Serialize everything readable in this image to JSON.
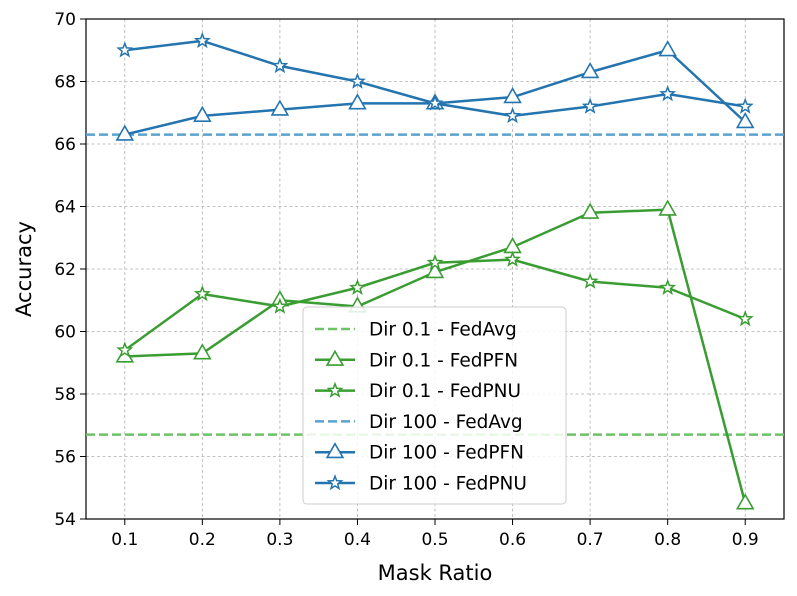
{
  "chart_data": {
    "type": "line",
    "title": "",
    "xlabel": "Mask Ratio",
    "ylabel": "Accuracy",
    "x": [
      0.1,
      0.2,
      0.3,
      0.4,
      0.5,
      0.6,
      0.7,
      0.8,
      0.9
    ],
    "x_tick_labels": [
      "0.1",
      "0.2",
      "0.3",
      "0.4",
      "0.5",
      "0.6",
      "0.7",
      "0.8",
      "0.9"
    ],
    "xlim": [
      0.05,
      0.95
    ],
    "ylim": [
      54,
      70
    ],
    "y_ticks": [
      54,
      56,
      58,
      60,
      62,
      64,
      66,
      68,
      70
    ],
    "y_tick_labels": [
      "54",
      "56",
      "58",
      "60",
      "62",
      "64",
      "66",
      "68",
      "70"
    ],
    "grid": true,
    "legend_position": "center-bottom",
    "colors": {
      "green": "#3a9d32",
      "green_light": "#6cc265",
      "blue": "#2474b0",
      "blue_light": "#5aa3cf"
    },
    "series": [
      {
        "name": "Dir 0.1 - FedAvg",
        "style": "dashed",
        "marker": "none",
        "color_key": "green_light",
        "values": [
          56.7,
          56.7,
          56.7,
          56.7,
          56.7,
          56.7,
          56.7,
          56.7,
          56.7
        ]
      },
      {
        "name": "Dir 0.1 - FedPFN",
        "style": "solid",
        "marker": "triangle",
        "color_key": "green",
        "values": [
          59.2,
          59.3,
          61.0,
          60.8,
          61.9,
          62.7,
          63.8,
          63.9,
          54.5
        ]
      },
      {
        "name": "Dir 0.1 - FedPNU",
        "style": "solid",
        "marker": "star",
        "color_key": "green",
        "values": [
          59.4,
          61.2,
          60.8,
          61.4,
          62.2,
          62.3,
          61.6,
          61.4,
          60.4
        ]
      },
      {
        "name": "Dir 100 - FedAvg",
        "style": "dashed",
        "marker": "none",
        "color_key": "blue_light",
        "values": [
          66.3,
          66.3,
          66.3,
          66.3,
          66.3,
          66.3,
          66.3,
          66.3,
          66.3
        ]
      },
      {
        "name": "Dir 100 - FedPFN",
        "style": "solid",
        "marker": "triangle",
        "color_key": "blue",
        "values": [
          66.3,
          66.9,
          67.1,
          67.3,
          67.3,
          67.5,
          68.3,
          69.0,
          66.7
        ]
      },
      {
        "name": "Dir 100 - FedPNU",
        "style": "solid",
        "marker": "star",
        "color_key": "blue",
        "values": [
          69.0,
          69.3,
          68.5,
          68.0,
          67.3,
          66.9,
          67.2,
          67.6,
          67.2
        ]
      }
    ]
  }
}
